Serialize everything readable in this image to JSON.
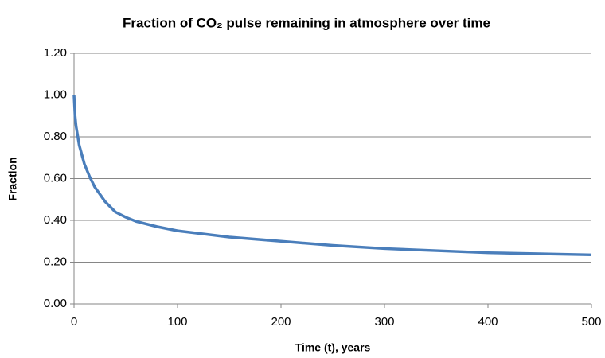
{
  "chart_data": {
    "type": "line",
    "title": "Fraction of CO₂ pulse remaining in atmosphere over time",
    "x_label": "Time (t), years",
    "y_label": "Fraction",
    "x": [
      0,
      1,
      2,
      5,
      10,
      15,
      20,
      30,
      40,
      50,
      60,
      80,
      100,
      150,
      200,
      250,
      300,
      350,
      400,
      450,
      500
    ],
    "series": [
      {
        "name": "Fraction",
        "color": "#4a7ebb",
        "values": [
          1.0,
          0.9,
          0.85,
          0.76,
          0.67,
          0.61,
          0.56,
          0.49,
          0.44,
          0.415,
          0.395,
          0.37,
          0.35,
          0.32,
          0.3,
          0.28,
          0.265,
          0.255,
          0.245,
          0.24,
          0.235
        ]
      }
    ],
    "xlim": [
      0,
      500
    ],
    "xticks": [
      0,
      100,
      200,
      300,
      400,
      500
    ],
    "ylim": [
      0,
      1.2
    ],
    "yticks": [
      {
        "value": 0,
        "label": "0.00"
      },
      {
        "value": 0.2,
        "label": "0.20"
      },
      {
        "value": 0.4,
        "label": "0.40"
      },
      {
        "value": 0.6,
        "label": "0.60"
      },
      {
        "value": 0.8,
        "label": "0.80"
      },
      {
        "value": 1.0,
        "label": "1.00"
      },
      {
        "value": 1.2,
        "label": "1.20"
      }
    ],
    "grid": true
  }
}
